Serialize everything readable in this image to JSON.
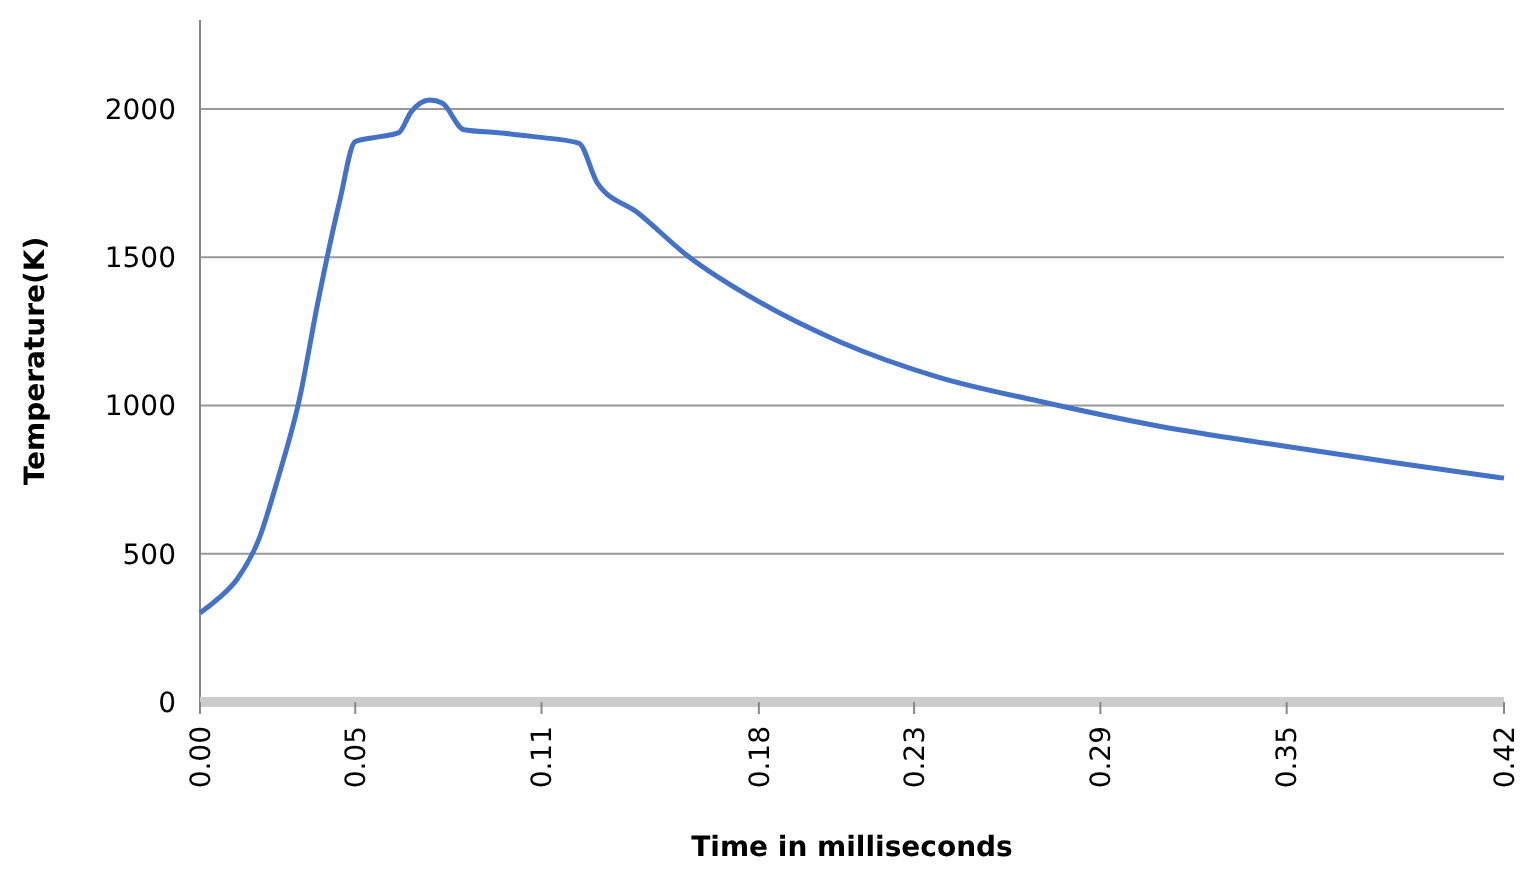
{
  "chart_data": {
    "type": "line",
    "xlabel": "Time in milliseconds",
    "ylabel": "Temperature(K)",
    "x": [
      0,
      0.006,
      0.012,
      0.019,
      0.025,
      0.032,
      0.038,
      0.045,
      0.05,
      0.057,
      0.064,
      0.068,
      0.074,
      0.078,
      0.085,
      0.096,
      0.109,
      0.122,
      0.128,
      0.141,
      0.157,
      0.18,
      0.206,
      0.238,
      0.27,
      0.309,
      0.348,
      0.386,
      0.42
    ],
    "series": [
      {
        "color": "#4472c4",
        "values": [
          300,
          350,
          415,
          550,
          750,
          1020,
          1350,
          1690,
          1890,
          1905,
          1920,
          1990,
          2030,
          2020,
          1930,
          1920,
          1905,
          1885,
          1750,
          1650,
          1505,
          1350,
          1215,
          1095,
          1015,
          930,
          865,
          805,
          755
        ]
      }
    ],
    "xlim": [
      0,
      0.42
    ],
    "xticks": [
      {
        "value": 0,
        "label": "0.00"
      },
      {
        "value": 0.05,
        "label": "0.05"
      },
      {
        "value": 0.11,
        "label": "0.11"
      },
      {
        "value": 0.18,
        "label": "0.18"
      },
      {
        "value": 0.23,
        "label": "0.23"
      },
      {
        "value": 0.29,
        "label": "0.29"
      },
      {
        "value": 0.35,
        "label": "0.35"
      },
      {
        "value": 0.42,
        "label": "0.42"
      }
    ],
    "ylim": [
      0,
      2300
    ],
    "yticks": [
      0,
      500,
      1000,
      1500,
      2000
    ],
    "grid": "y",
    "marker": "none",
    "line_style": "solid"
  }
}
